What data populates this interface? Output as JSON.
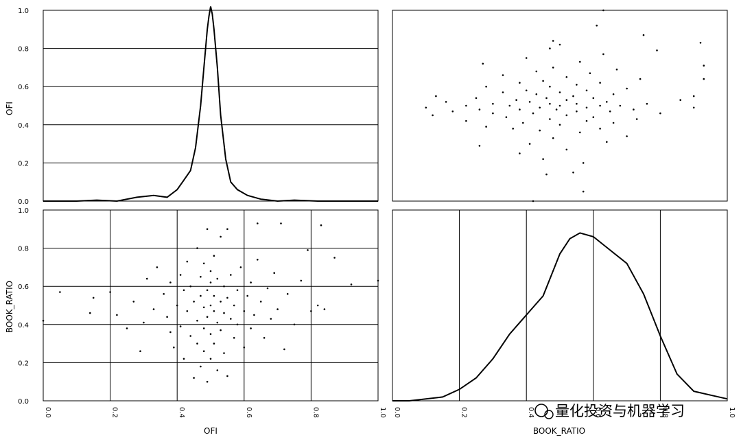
{
  "chart_data": {
    "type": "scatter",
    "variables": [
      "OFI",
      "BOOK_RATIO"
    ],
    "axis_ticks": [
      "0.0",
      "0.2",
      "0.4",
      "0.6",
      "0.8",
      "1.0"
    ],
    "axis_range": [
      0.0,
      1.0
    ],
    "grid": true,
    "panels": {
      "ofi_density": {
        "type": "line",
        "x": [
          0.0,
          0.1,
          0.16,
          0.22,
          0.28,
          0.33,
          0.37,
          0.4,
          0.42,
          0.44,
          0.455,
          0.47,
          0.48,
          0.49,
          0.495,
          0.5,
          0.505,
          0.51,
          0.52,
          0.53,
          0.545,
          0.56,
          0.58,
          0.61,
          0.65,
          0.7,
          0.75,
          0.82,
          0.9,
          1.0
        ],
        "y": [
          0.0,
          0.0,
          0.005,
          0.0,
          0.02,
          0.03,
          0.02,
          0.06,
          0.11,
          0.16,
          0.28,
          0.5,
          0.7,
          0.9,
          0.97,
          1.02,
          0.98,
          0.9,
          0.7,
          0.45,
          0.22,
          0.1,
          0.06,
          0.03,
          0.01,
          0.0,
          0.005,
          0.0,
          0.0,
          0.0
        ]
      },
      "book_ratio_density": {
        "type": "line",
        "x": [
          0.0,
          0.05,
          0.1,
          0.15,
          0.2,
          0.25,
          0.3,
          0.35,
          0.4,
          0.45,
          0.5,
          0.53,
          0.56,
          0.6,
          0.65,
          0.7,
          0.75,
          0.8,
          0.85,
          0.9,
          0.95,
          1.0
        ],
        "y": [
          0.0,
          0.0,
          0.01,
          0.02,
          0.06,
          0.12,
          0.22,
          0.35,
          0.45,
          0.55,
          0.77,
          0.85,
          0.88,
          0.86,
          0.79,
          0.72,
          0.56,
          0.34,
          0.14,
          0.05,
          0.03,
          0.01
        ]
      },
      "scatter_points": [
        [
          0.0,
          0.42
        ],
        [
          0.05,
          0.57
        ],
        [
          0.14,
          0.46
        ],
        [
          0.15,
          0.54
        ],
        [
          0.2,
          0.57
        ],
        [
          0.22,
          0.45
        ],
        [
          0.25,
          0.38
        ],
        [
          0.27,
          0.52
        ],
        [
          0.29,
          0.26
        ],
        [
          0.3,
          0.41
        ],
        [
          0.31,
          0.64
        ],
        [
          0.33,
          0.48
        ],
        [
          0.34,
          0.7
        ],
        [
          0.36,
          0.56
        ],
        [
          0.37,
          0.44
        ],
        [
          0.38,
          0.36
        ],
        [
          0.38,
          0.62
        ],
        [
          0.39,
          0.28
        ],
        [
          0.4,
          0.5
        ],
        [
          0.41,
          0.66
        ],
        [
          0.41,
          0.39
        ],
        [
          0.42,
          0.58
        ],
        [
          0.42,
          0.22
        ],
        [
          0.43,
          0.47
        ],
        [
          0.43,
          0.73
        ],
        [
          0.44,
          0.34
        ],
        [
          0.44,
          0.6
        ],
        [
          0.45,
          0.12
        ],
        [
          0.45,
          0.52
        ],
        [
          0.46,
          0.42
        ],
        [
          0.46,
          0.8
        ],
        [
          0.46,
          0.3
        ],
        [
          0.47,
          0.55
        ],
        [
          0.47,
          0.65
        ],
        [
          0.47,
          0.18
        ],
        [
          0.48,
          0.49
        ],
        [
          0.48,
          0.38
        ],
        [
          0.48,
          0.72
        ],
        [
          0.48,
          0.26
        ],
        [
          0.49,
          0.44
        ],
        [
          0.49,
          0.58
        ],
        [
          0.49,
          0.9
        ],
        [
          0.49,
          0.1
        ],
        [
          0.5,
          0.5
        ],
        [
          0.5,
          0.62
        ],
        [
          0.5,
          0.35
        ],
        [
          0.5,
          0.68
        ],
        [
          0.5,
          0.22
        ],
        [
          0.51,
          0.47
        ],
        [
          0.51,
          0.55
        ],
        [
          0.51,
          0.3
        ],
        [
          0.51,
          0.76
        ],
        [
          0.52,
          0.41
        ],
        [
          0.52,
          0.64
        ],
        [
          0.52,
          0.16
        ],
        [
          0.53,
          0.52
        ],
        [
          0.53,
          0.86
        ],
        [
          0.53,
          0.37
        ],
        [
          0.54,
          0.46
        ],
        [
          0.54,
          0.6
        ],
        [
          0.54,
          0.25
        ],
        [
          0.55,
          0.54
        ],
        [
          0.55,
          0.9
        ],
        [
          0.55,
          0.13
        ],
        [
          0.56,
          0.43
        ],
        [
          0.56,
          0.66
        ],
        [
          0.57,
          0.5
        ],
        [
          0.57,
          0.33
        ],
        [
          0.58,
          0.58
        ],
        [
          0.58,
          0.4
        ],
        [
          0.59,
          0.7
        ],
        [
          0.6,
          0.47
        ],
        [
          0.6,
          0.28
        ],
        [
          0.61,
          0.55
        ],
        [
          0.62,
          0.62
        ],
        [
          0.62,
          0.38
        ],
        [
          0.63,
          0.45
        ],
        [
          0.64,
          0.74
        ],
        [
          0.65,
          0.52
        ],
        [
          0.66,
          0.33
        ],
        [
          0.67,
          0.59
        ],
        [
          0.68,
          0.43
        ],
        [
          0.69,
          0.67
        ],
        [
          0.7,
          0.48
        ],
        [
          0.72,
          0.27
        ],
        [
          0.73,
          0.56
        ],
        [
          0.75,
          0.4
        ],
        [
          0.77,
          0.63
        ],
        [
          0.79,
          0.79
        ],
        [
          0.8,
          0.47
        ],
        [
          0.82,
          0.5
        ],
        [
          0.83,
          0.92
        ],
        [
          0.84,
          0.48
        ],
        [
          0.87,
          0.75
        ],
        [
          0.92,
          0.61
        ],
        [
          1.0,
          0.63
        ],
        [
          0.64,
          0.93
        ],
        [
          0.71,
          0.93
        ]
      ]
    },
    "xlabels": [
      "OFI",
      "BOOK_RATIO"
    ],
    "ylabels": [
      "OFI",
      "BOOK_RATIO"
    ]
  },
  "watermark": "量化投资与机器学习"
}
